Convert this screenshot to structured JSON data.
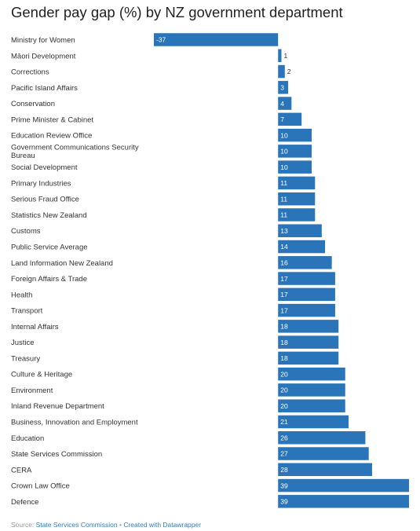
{
  "title": "Gender pay gap (%) by NZ government department",
  "footer": {
    "source_prefix": "Source:",
    "source_name": "State Services Commission",
    "separator": "•",
    "credit": "Created with Datawrapper"
  },
  "colors": {
    "bar": "#2a75b9",
    "label_inside": "#ffffff",
    "label_outside": "#333333",
    "link": "#2f7ec1"
  },
  "chart_data": {
    "type": "bar",
    "orientation": "horizontal",
    "categories": [
      "Ministry for Women",
      "Māori Development",
      "Corrections",
      "Pacific Island Affairs",
      "Conservation",
      "Prime Minister & Cabinet",
      "Education Review Office",
      "Government Communications Security Bureau",
      "Social Development",
      "Primary Industries",
      "Serious Fraud Office",
      "Statistics New Zealand",
      "Customs",
      "Public Service Average",
      "Land Information New Zealand",
      "Foreign Affairs & Trade",
      "Health",
      "Transport",
      "Internal Affairs",
      "Justice",
      "Treasury",
      "Culture & Heritage",
      "Environment",
      "Inland Revenue Department",
      "Business, Innovation and Employment",
      "Education",
      "State Services Commission",
      "CERA",
      "Crown Law Office",
      "Defence"
    ],
    "values": [
      -37,
      1,
      2,
      3,
      4,
      7,
      10,
      10,
      10,
      11,
      11,
      11,
      13,
      14,
      16,
      17,
      17,
      17,
      18,
      18,
      18,
      20,
      20,
      20,
      21,
      26,
      27,
      28,
      39,
      39
    ],
    "xlim": [
      -37,
      39
    ],
    "grid": false,
    "legend": "none"
  }
}
